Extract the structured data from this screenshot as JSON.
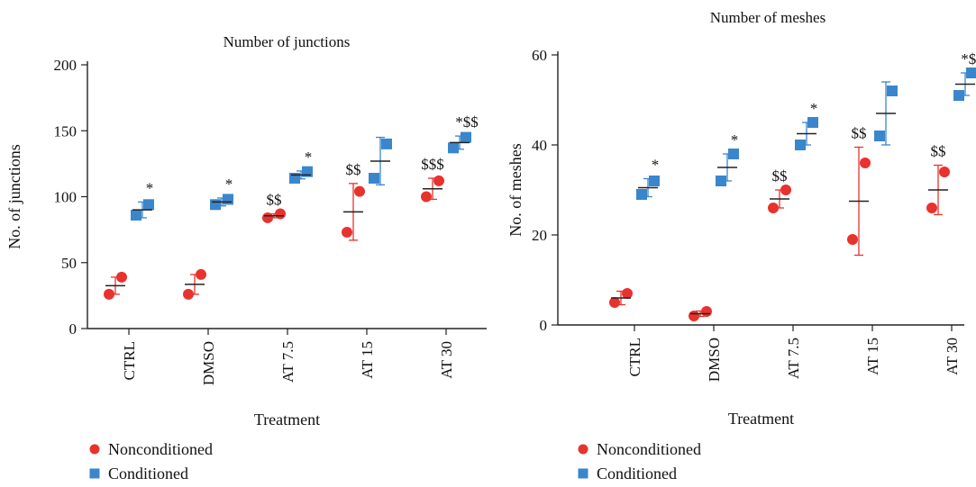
{
  "colors": {
    "nonconditioned": "#e8322d",
    "conditioned": "#3a86cc",
    "axis": "#222222"
  },
  "chart_data": [
    {
      "type": "scatter",
      "title": "Number of junctions",
      "xlabel": "Treatment",
      "ylabel": "No. of junctions",
      "ylim": [
        0,
        200
      ],
      "yticks": [
        0,
        50,
        100,
        150,
        200
      ],
      "categories": [
        "CTRL",
        "DMSO",
        "AT 7.5",
        "AT 15",
        "AT 30"
      ],
      "series": [
        {
          "name": "Nonconditioned",
          "marker": "circle",
          "points": [
            [
              26,
              39
            ],
            [
              26,
              41
            ],
            [
              84,
              87
            ],
            [
              73,
              104
            ],
            [
              100,
              112
            ]
          ],
          "mean": [
            32.5,
            33.5,
            85.5,
            88.5,
            106
          ],
          "err": [
            6.5,
            7.5,
            1.5,
            21.5,
            8
          ],
          "annotations": [
            "",
            "",
            "$$",
            "$$",
            "$$$"
          ]
        },
        {
          "name": "Conditioned",
          "marker": "square",
          "points": [
            [
              86,
              94
            ],
            [
              94,
              98
            ],
            [
              114,
              119
            ],
            [
              114,
              140
            ],
            [
              137,
              145
            ]
          ],
          "mean": [
            90,
            96,
            116.5,
            127,
            141
          ],
          "err": [
            6,
            3,
            3,
            18,
            5
          ],
          "annotations": [
            "*",
            "*",
            "*",
            "",
            "*$$"
          ]
        }
      ],
      "legend": [
        "Nonconditioned",
        "Conditioned"
      ],
      "legend_position": "bottom-left"
    },
    {
      "type": "scatter",
      "title": "Number of meshes",
      "xlabel": "Treatment",
      "ylabel": "No. of meshes",
      "ylim": [
        0,
        60
      ],
      "yticks": [
        0,
        20,
        40,
        60
      ],
      "categories": [
        "CTRL",
        "DMSO",
        "AT 7.5",
        "AT 15",
        "AT 30"
      ],
      "series": [
        {
          "name": "Nonconditioned",
          "marker": "circle",
          "points": [
            [
              5,
              7
            ],
            [
              2,
              3
            ],
            [
              26,
              30
            ],
            [
              19,
              36
            ],
            [
              26,
              34
            ]
          ],
          "mean": [
            6,
            2.5,
            28,
            27.5,
            30
          ],
          "err": [
            1.5,
            0.6,
            2,
            12,
            5.5
          ],
          "annotations": [
            "",
            "",
            "$$",
            "$$",
            "$$"
          ]
        },
        {
          "name": "Conditioned",
          "marker": "square",
          "points": [
            [
              29,
              32
            ],
            [
              32,
              38
            ],
            [
              40,
              45
            ],
            [
              42,
              52
            ],
            [
              51,
              56
            ]
          ],
          "mean": [
            30.5,
            35,
            42.5,
            47,
            53.5
          ],
          "err": [
            2,
            3,
            2.5,
            7,
            2.5
          ],
          "annotations": [
            "*",
            "*",
            "*",
            "",
            "*$$"
          ]
        }
      ],
      "legend": [
        "Nonconditioned",
        "Conditioned"
      ],
      "legend_position": "bottom-left"
    }
  ]
}
